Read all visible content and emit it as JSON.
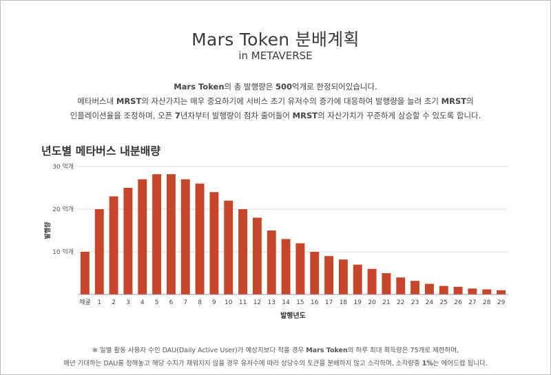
{
  "header": {
    "title": "Mars Token 분배계획",
    "subtitle": "in METAVERSE"
  },
  "description": {
    "line1": [
      "",
      "Mars Token",
      "의 총 발행량은 ",
      "500",
      "억개로 한정되어있습니다."
    ],
    "line2": [
      "메타버스내 ",
      "MRST",
      "의 자산가치는 매우 중요하기에  서비스 초기 유저수의 증가에 대응하여 발행량을 늘려 초기 ",
      "MRST",
      "의"
    ],
    "line3": [
      "인플레이션율을 조정하며, 오픈 ",
      "7",
      "년차부터 발행량이 점차 줄어들어 ",
      "MRST",
      "의 자산가치가 꾸준하게 상승할 수 있도록 합니다."
    ]
  },
  "section_title": "년도별 메타버스 내분배량",
  "chart_data": {
    "type": "bar",
    "categories": [
      "채굴",
      "1",
      "2",
      "3",
      "4",
      "5",
      "6",
      "7",
      "8",
      "9",
      "10",
      "11",
      "12",
      "13",
      "14",
      "15",
      "16",
      "17",
      "18",
      "19",
      "20",
      "21",
      "22",
      "23",
      "24",
      "25",
      "26",
      "27",
      "28",
      "29"
    ],
    "values": [
      10,
      20,
      23,
      25,
      27,
      28.2,
      28.2,
      27,
      26,
      24,
      22,
      20,
      18,
      15,
      13,
      12,
      10,
      9,
      8.2,
      7,
      6,
      5,
      4,
      3.2,
      2.5,
      2,
      1.8,
      1.4,
      1.2,
      1
    ],
    "ylim": [
      0,
      30
    ],
    "yticks": [
      10,
      20,
      30
    ],
    "ytick_labels": [
      "10 억개",
      "20 억개",
      "30 억개"
    ],
    "xlabel": "발행년도",
    "ylabel": "발행량",
    "grid": true,
    "bar_color": "#c8452c",
    "grid_color": "#dddddd"
  },
  "footnote": {
    "line1": [
      "※ 일별 활동 사용자 수인 DAU(Daily Active User)가 예상치보다 적을 경우 ",
      "Mars Token",
      "의 하루 최대 획득량은 75개로 제한하며,"
    ],
    "line2": [
      "매년 기대하는 DAU를 정해놓고 해당 수치가 채워지지 않을 경우 유저수에 따라 상당수의 토큰을 분배하지 않고 소각하며, 소각량중 ",
      "1%",
      "는 에어드랍 됩니다."
    ]
  }
}
